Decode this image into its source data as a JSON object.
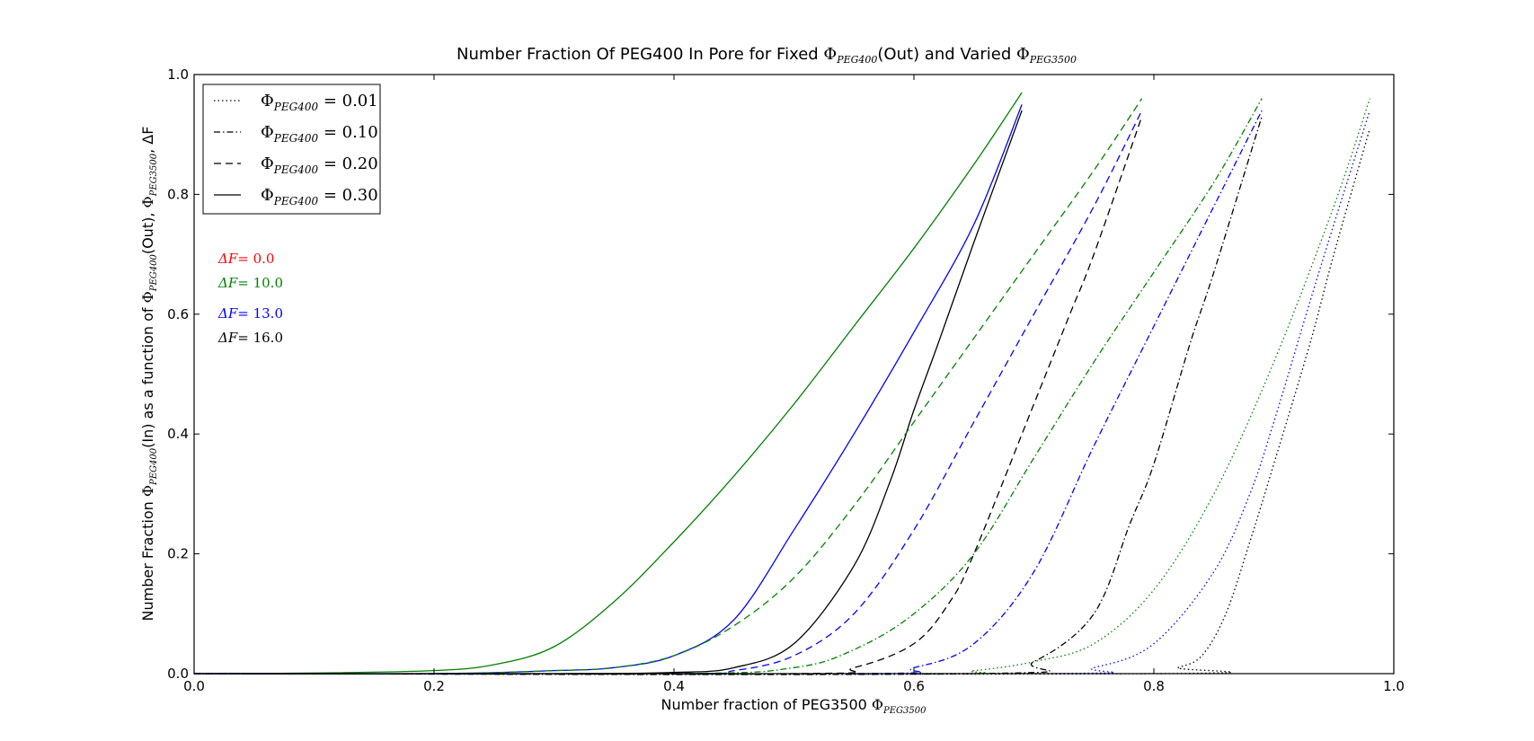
{
  "chart_data": {
    "type": "line",
    "title_parts": {
      "lead": "Number Fraction Of PEG400 In Pore for Fixed ",
      "phi1": "Φ",
      "phi1_sub": "PEG400",
      "mid": "(Out) and Varied ",
      "phi2": "Φ",
      "phi2_sub": "PEG3500"
    },
    "xlabel_parts": {
      "lead": "Number fraction of PEG3500 ",
      "phi": "Φ",
      "sub": "PEG3500"
    },
    "ylabel_parts": {
      "a": "Number Fraction ",
      "b": "Φ",
      "b_sub": "PEG400",
      "c": "(In) as a function of ",
      "d": "Φ",
      "d_sub": "PEG400",
      "e": "(Out), ",
      "f": "Φ",
      "f_sub": "PEG3500",
      "g": ", ΔF"
    },
    "xlim": [
      0.0,
      1.0
    ],
    "ylim": [
      0.0,
      1.0
    ],
    "xticks": [
      "0.0",
      "0.2",
      "0.4",
      "0.6",
      "0.8",
      "1.0"
    ],
    "yticks": [
      "0.0",
      "0.2",
      "0.4",
      "0.6",
      "0.8",
      "1.0"
    ],
    "legend_position": "top-left",
    "legend": [
      {
        "phi": "Φ",
        "sub": "PEG400",
        "value": "= 0.01",
        "style": "dotted"
      },
      {
        "phi": "Φ",
        "sub": "PEG400",
        "value": "= 0.10",
        "style": "dashdot"
      },
      {
        "phi": "Φ",
        "sub": "PEG400",
        "value": "= 0.20",
        "style": "dashed"
      },
      {
        "phi": "Φ",
        "sub": "PEG400",
        "value": "= 0.30",
        "style": "solid"
      }
    ],
    "annotations": [
      {
        "label": "ΔF",
        "value": "= 0.0",
        "color": "#ff0000"
      },
      {
        "label": "ΔF",
        "value": "= 10.0",
        "color": "#008000"
      },
      {
        "label": "ΔF",
        "value": "= 13.0",
        "color": "#0000ff"
      },
      {
        "label": "ΔF",
        "value": "= 16.0",
        "color": "#000000"
      }
    ],
    "colors": {
      "dF10": "#008000",
      "dF13": "#0000ff",
      "dF16": "#000000"
    },
    "series": [
      {
        "phi_out": 0.3,
        "delta_F": 10.0,
        "style": "solid",
        "color": "#008000",
        "x": [
          0.0,
          0.1,
          0.2,
          0.25,
          0.3,
          0.35,
          0.4,
          0.45,
          0.5,
          0.55,
          0.6,
          0.65,
          0.69
        ],
        "y": [
          0.0,
          0.001,
          0.005,
          0.015,
          0.045,
          0.12,
          0.22,
          0.33,
          0.45,
          0.58,
          0.71,
          0.85,
          0.97
        ]
      },
      {
        "phi_out": 0.3,
        "delta_F": 13.0,
        "style": "solid",
        "color": "#0000ff",
        "x": [
          0.0,
          0.2,
          0.3,
          0.35,
          0.4,
          0.45,
          0.5,
          0.55,
          0.6,
          0.65,
          0.69
        ],
        "y": [
          0.0,
          0.0,
          0.005,
          0.01,
          0.03,
          0.09,
          0.24,
          0.4,
          0.57,
          0.75,
          0.95
        ]
      },
      {
        "phi_out": 0.3,
        "delta_F": 16.0,
        "style": "solid",
        "color": "#000000",
        "x": [
          0.0,
          0.3,
          0.4,
          0.45,
          0.5,
          0.55,
          0.58,
          0.6,
          0.62,
          0.65,
          0.69
        ],
        "y": [
          0.0,
          0.0,
          0.002,
          0.01,
          0.05,
          0.18,
          0.32,
          0.44,
          0.55,
          0.72,
          0.94
        ]
      },
      {
        "phi_out": 0.2,
        "delta_F": 10.0,
        "style": "dashed",
        "color": "#008000",
        "x": [
          0.0,
          0.2,
          0.3,
          0.35,
          0.4,
          0.45,
          0.5,
          0.55,
          0.6,
          0.65,
          0.7,
          0.75,
          0.79
        ],
        "y": [
          0.0,
          0.0,
          0.005,
          0.01,
          0.03,
          0.08,
          0.16,
          0.28,
          0.42,
          0.56,
          0.7,
          0.84,
          0.96
        ]
      },
      {
        "phi_out": 0.2,
        "delta_F": 13.0,
        "style": "dashed",
        "color": "#0000ff",
        "x": [
          0.0,
          0.4,
          0.45,
          0.5,
          0.55,
          0.6,
          0.65,
          0.7,
          0.75,
          0.79
        ],
        "y": [
          0.0,
          0.0,
          0.005,
          0.03,
          0.1,
          0.24,
          0.42,
          0.6,
          0.78,
          0.94
        ]
      },
      {
        "phi_out": 0.2,
        "delta_F": 16.0,
        "style": "dashed",
        "color": "#000000",
        "x": [
          0.0,
          0.5,
          0.55,
          0.6,
          0.63,
          0.65,
          0.7,
          0.73,
          0.75,
          0.79
        ],
        "y": [
          0.0,
          0.0,
          0.01,
          0.05,
          0.12,
          0.2,
          0.45,
          0.6,
          0.7,
          0.93
        ]
      },
      {
        "phi_out": 0.1,
        "delta_F": 10.0,
        "style": "dashdot",
        "color": "#008000",
        "x": [
          0.0,
          0.4,
          0.5,
          0.55,
          0.6,
          0.65,
          0.7,
          0.75,
          0.8,
          0.85,
          0.89
        ],
        "y": [
          0.0,
          0.0,
          0.01,
          0.04,
          0.1,
          0.2,
          0.36,
          0.52,
          0.67,
          0.82,
          0.96
        ]
      },
      {
        "phi_out": 0.1,
        "delta_F": 13.0,
        "style": "dashdot",
        "color": "#0000ff",
        "x": [
          0.0,
          0.55,
          0.6,
          0.65,
          0.7,
          0.75,
          0.8,
          0.85,
          0.89
        ],
        "y": [
          0.0,
          0.0,
          0.01,
          0.05,
          0.17,
          0.38,
          0.58,
          0.78,
          0.94
        ]
      },
      {
        "phi_out": 0.1,
        "delta_F": 16.0,
        "style": "dashdot",
        "color": "#000000",
        "x": [
          0.0,
          0.65,
          0.7,
          0.75,
          0.78,
          0.8,
          0.83,
          0.85,
          0.89
        ],
        "y": [
          0.0,
          0.0,
          0.02,
          0.1,
          0.25,
          0.35,
          0.55,
          0.67,
          0.93
        ]
      },
      {
        "phi_out": 0.01,
        "delta_F": 10.0,
        "style": "dotted",
        "color": "#008000",
        "x": [
          0.0,
          0.6,
          0.65,
          0.7,
          0.75,
          0.8,
          0.85,
          0.9,
          0.95,
          0.98
        ],
        "y": [
          0.0,
          0.0,
          0.005,
          0.02,
          0.05,
          0.14,
          0.3,
          0.52,
          0.78,
          0.96
        ]
      },
      {
        "phi_out": 0.01,
        "delta_F": 13.0,
        "style": "dotted",
        "color": "#0000ff",
        "x": [
          0.0,
          0.7,
          0.75,
          0.8,
          0.85,
          0.88,
          0.9,
          0.93,
          0.95,
          0.98
        ],
        "y": [
          0.0,
          0.0,
          0.01,
          0.05,
          0.17,
          0.3,
          0.42,
          0.62,
          0.75,
          0.94
        ]
      },
      {
        "phi_out": 0.01,
        "delta_F": 16.0,
        "style": "dotted",
        "color": "#000000",
        "x": [
          0.0,
          0.8,
          0.82,
          0.84,
          0.86,
          0.88,
          0.9,
          0.93,
          0.95,
          0.98
        ],
        "y": [
          0.0,
          0.0,
          0.01,
          0.03,
          0.1,
          0.22,
          0.35,
          0.55,
          0.7,
          0.91
        ]
      }
    ]
  }
}
